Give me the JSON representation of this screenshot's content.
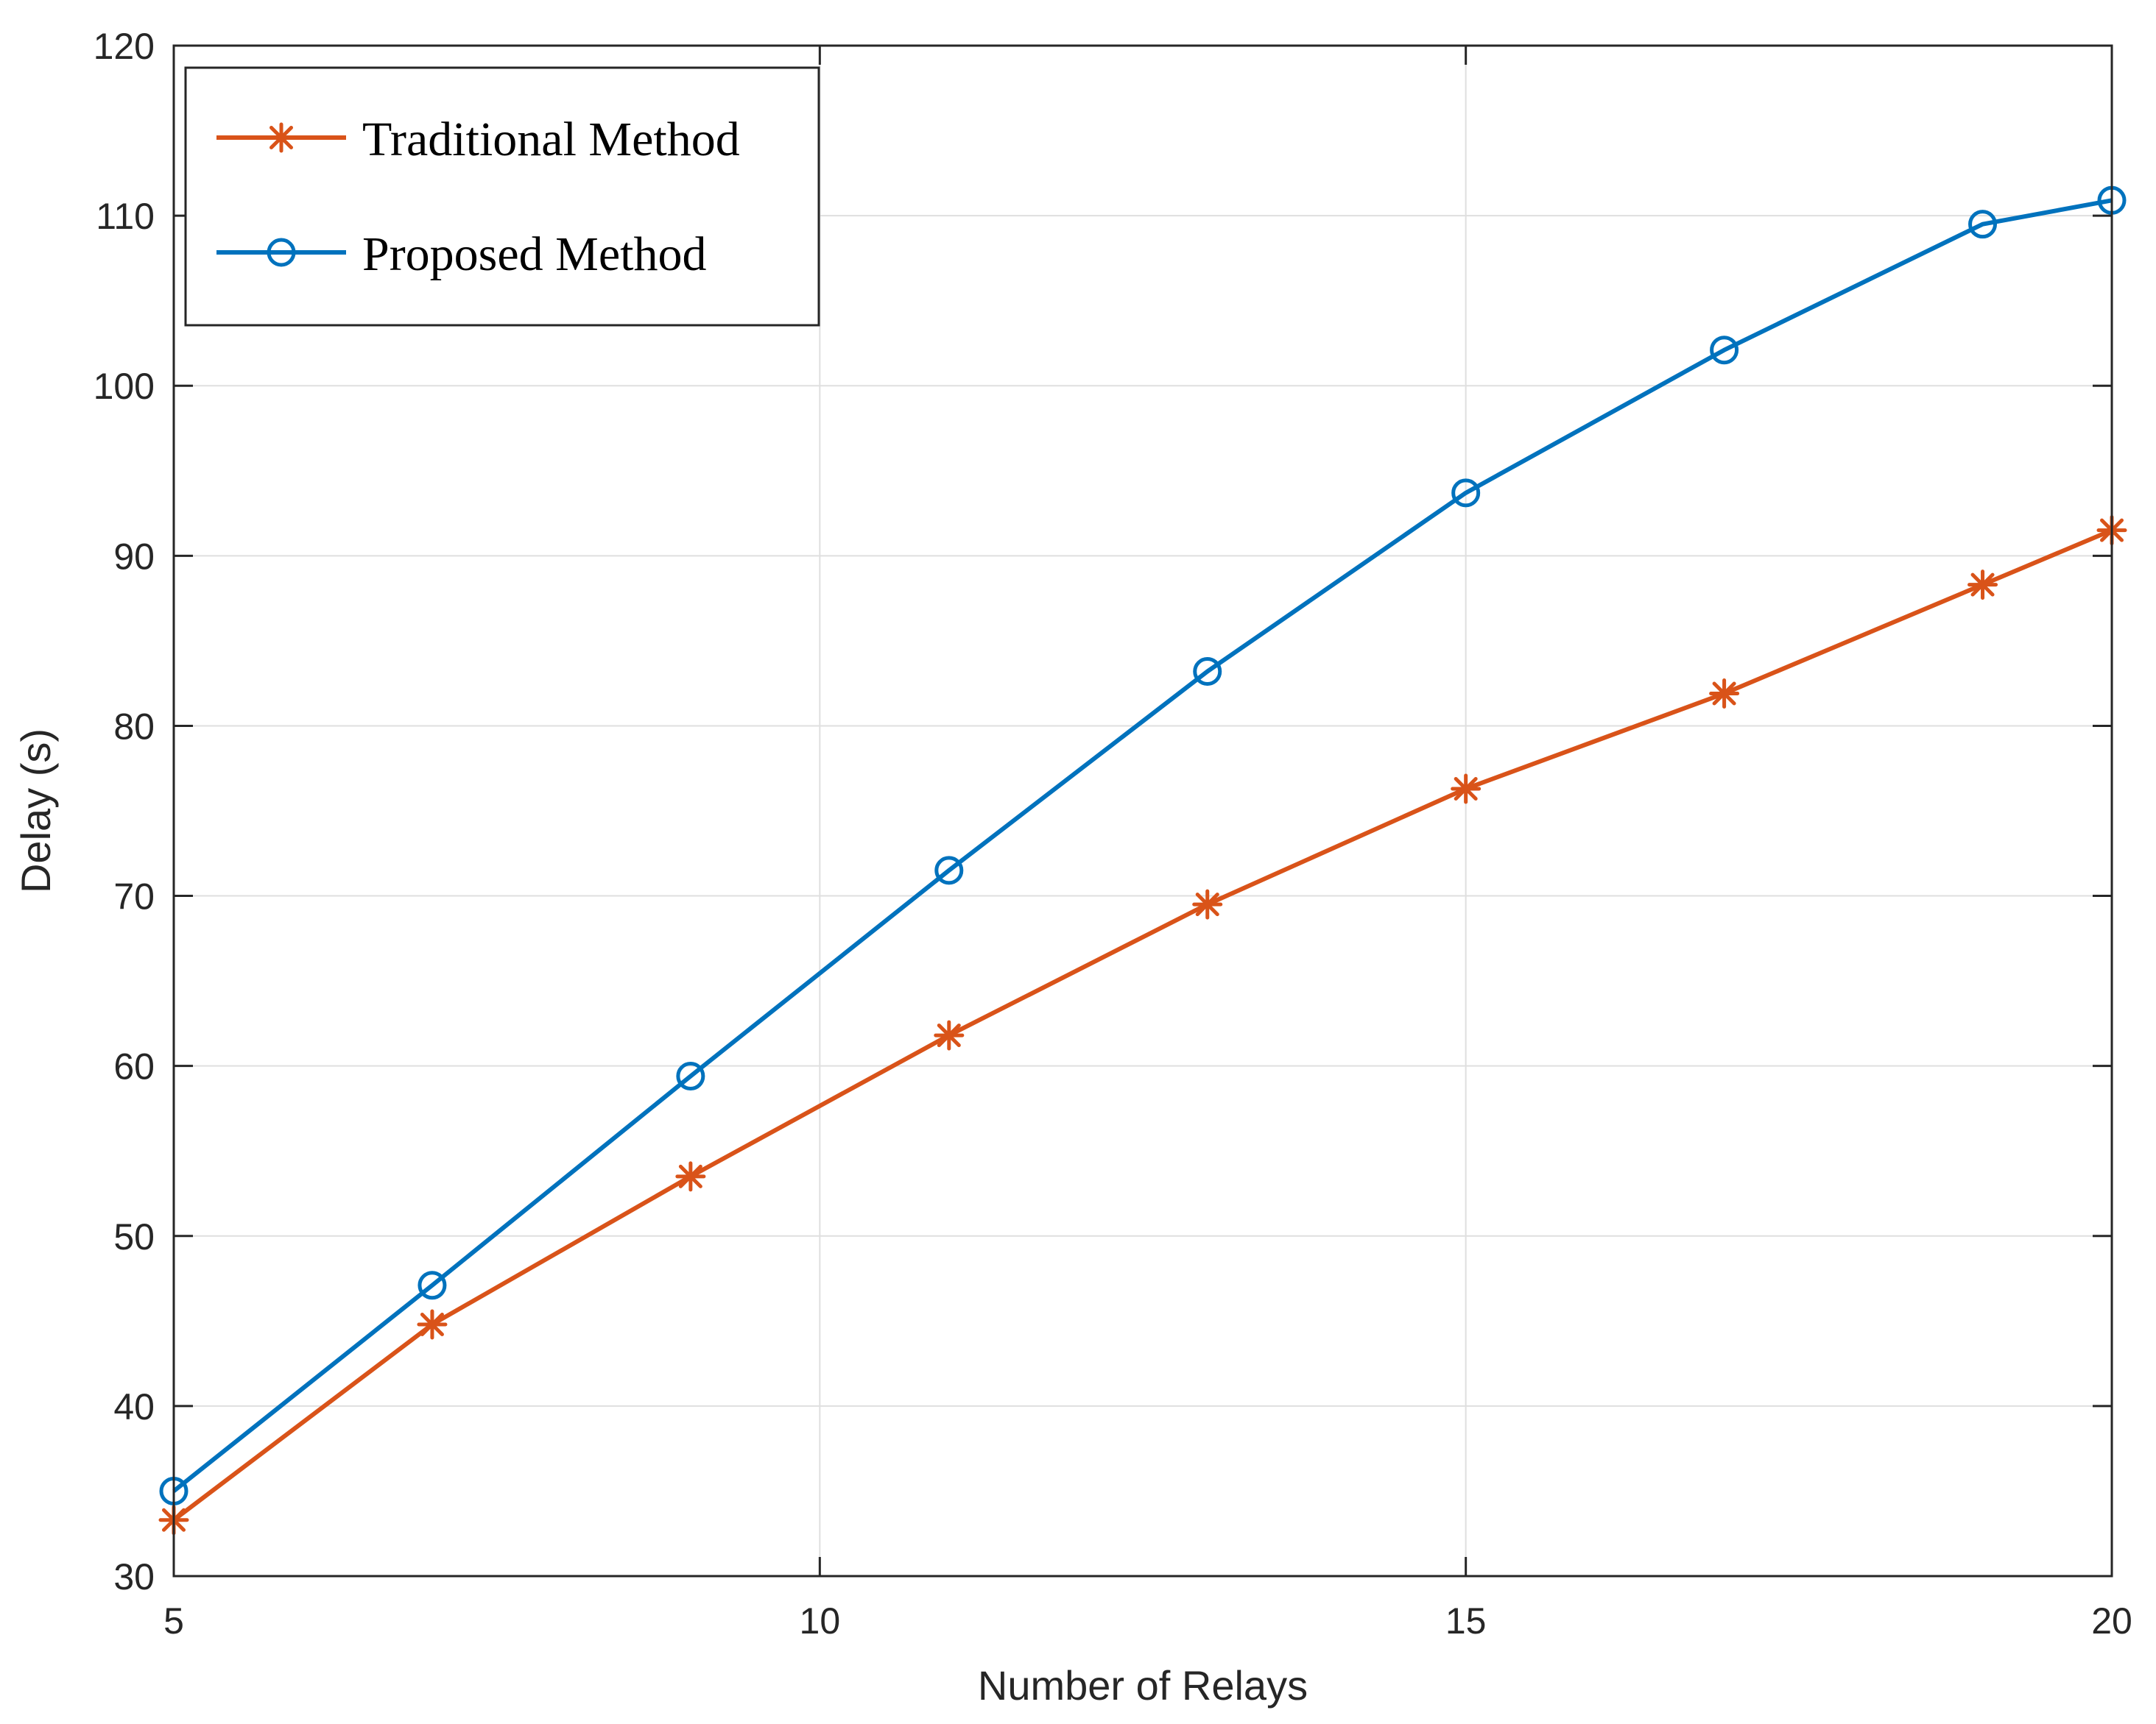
{
  "chart_data": {
    "type": "line",
    "title": "",
    "xlabel": "Number of Relays",
    "ylabel": "Delay (s)",
    "xlim": [
      5,
      20
    ],
    "ylim": [
      30,
      120
    ],
    "xticks": [
      5,
      10,
      15,
      20
    ],
    "yticks": [
      30,
      40,
      50,
      60,
      70,
      80,
      90,
      100,
      110,
      120
    ],
    "grid": true,
    "legend_position": "top-left",
    "x": [
      5,
      7,
      9,
      11,
      13,
      15,
      17,
      19,
      20
    ],
    "series": [
      {
        "name": "Traditional Method",
        "color": "#D95319",
        "marker": "asterisk",
        "values": [
          33.3,
          44.8,
          53.5,
          61.8,
          69.5,
          76.3,
          81.9,
          88.3,
          91.5
        ]
      },
      {
        "name": "Proposed Method",
        "color": "#0072BD",
        "marker": "circle",
        "values": [
          35.0,
          47.1,
          59.4,
          71.5,
          83.2,
          93.7,
          102.1,
          109.5,
          110.9
        ]
      }
    ]
  }
}
